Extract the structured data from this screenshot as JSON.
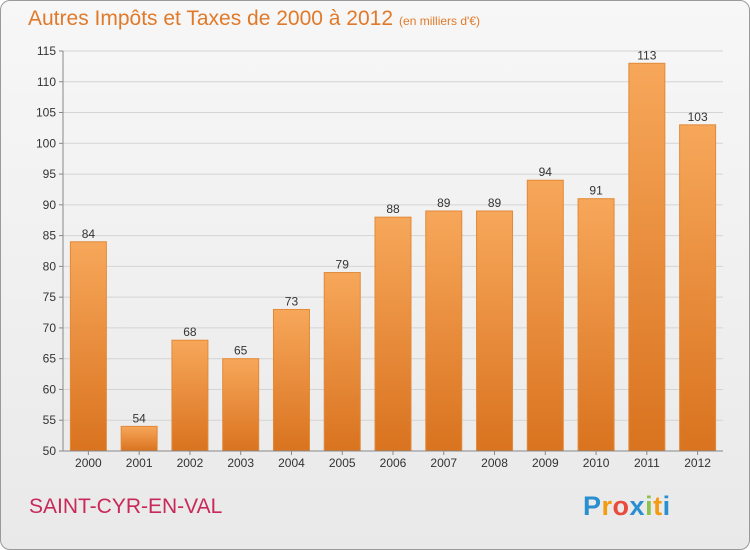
{
  "title": "Autres Impôts et Taxes de 2000 à 2012",
  "subtitle": "(en milliers d'€)",
  "commune": "SAINT-CYR-EN-VAL",
  "logo": {
    "letters": [
      "P",
      "r",
      "o",
      "x",
      "i",
      "t",
      "i"
    ],
    "colors": [
      "#2a8fd0",
      "#f39c12",
      "#e74c3c",
      "#2a8fd0",
      "#8bc34a",
      "#f39c12",
      "#2a8fd0"
    ]
  },
  "colors": {
    "bar": "#f0923a",
    "title": "#e07a2a",
    "commune": "#c8285a"
  },
  "chart_data": {
    "type": "bar",
    "categories": [
      "2000",
      "2001",
      "2002",
      "2003",
      "2004",
      "2005",
      "2006",
      "2007",
      "2008",
      "2009",
      "2010",
      "2011",
      "2012"
    ],
    "values": [
      84,
      54,
      68,
      65,
      73,
      79,
      88,
      89,
      89,
      94,
      91,
      113,
      103
    ],
    "ylim": [
      50,
      115
    ],
    "yticks": [
      50,
      55,
      60,
      65,
      70,
      75,
      80,
      85,
      90,
      95,
      100,
      105,
      110,
      115
    ],
    "grid": true,
    "xlabel": "",
    "ylabel": ""
  }
}
